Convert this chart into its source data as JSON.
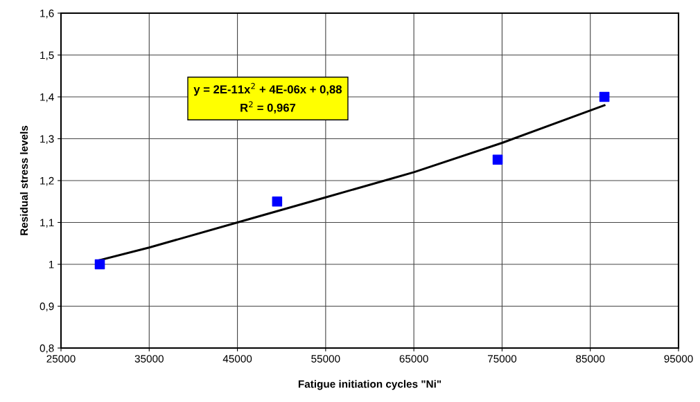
{
  "chart_data": {
    "type": "scatter",
    "xlabel": "Fatigue initiation cycles \"Ni\"",
    "ylabel": "Residual stress levels",
    "xlim": [
      25000,
      95000
    ],
    "xticks": [
      25000,
      35000,
      45000,
      55000,
      65000,
      75000,
      85000,
      95000
    ],
    "ylim": [
      0.8,
      1.6
    ],
    "yticks": [
      {
        "value": 0.8,
        "label": "0,8"
      },
      {
        "value": 0.9,
        "label": "0,9"
      },
      {
        "value": 1,
        "label": "1"
      },
      {
        "value": 1.1,
        "label": "1,1"
      },
      {
        "value": 1.2,
        "label": "1,2"
      },
      {
        "value": 1.3,
        "label": "1,3"
      },
      {
        "value": 1.4,
        "label": "1,4"
      },
      {
        "value": 1.5,
        "label": "1,5"
      },
      {
        "value": 1.6,
        "label": "1,6"
      }
    ],
    "grid": true,
    "marker": "square",
    "series": [
      {
        "color": "#0000ff",
        "x": [
          29400,
          49500,
          74500,
          86600
        ],
        "values": [
          1.0,
          1.15,
          1.25,
          1.4
        ]
      },
      {
        "type": "line",
        "color": "#000000",
        "line_style": "solid",
        "marker": "none",
        "x": [
          29400,
          35000,
          45000,
          55000,
          65000,
          75000,
          86600
        ],
        "values": [
          1.01,
          1.04,
          1.1,
          1.16,
          1.22,
          1.29,
          1.38
        ]
      }
    ],
    "annotations": [
      "y = 2E-11x$^{2}$ + 4E-06x + 0,88\nR$^{2}$ = 0,967"
    ]
  }
}
